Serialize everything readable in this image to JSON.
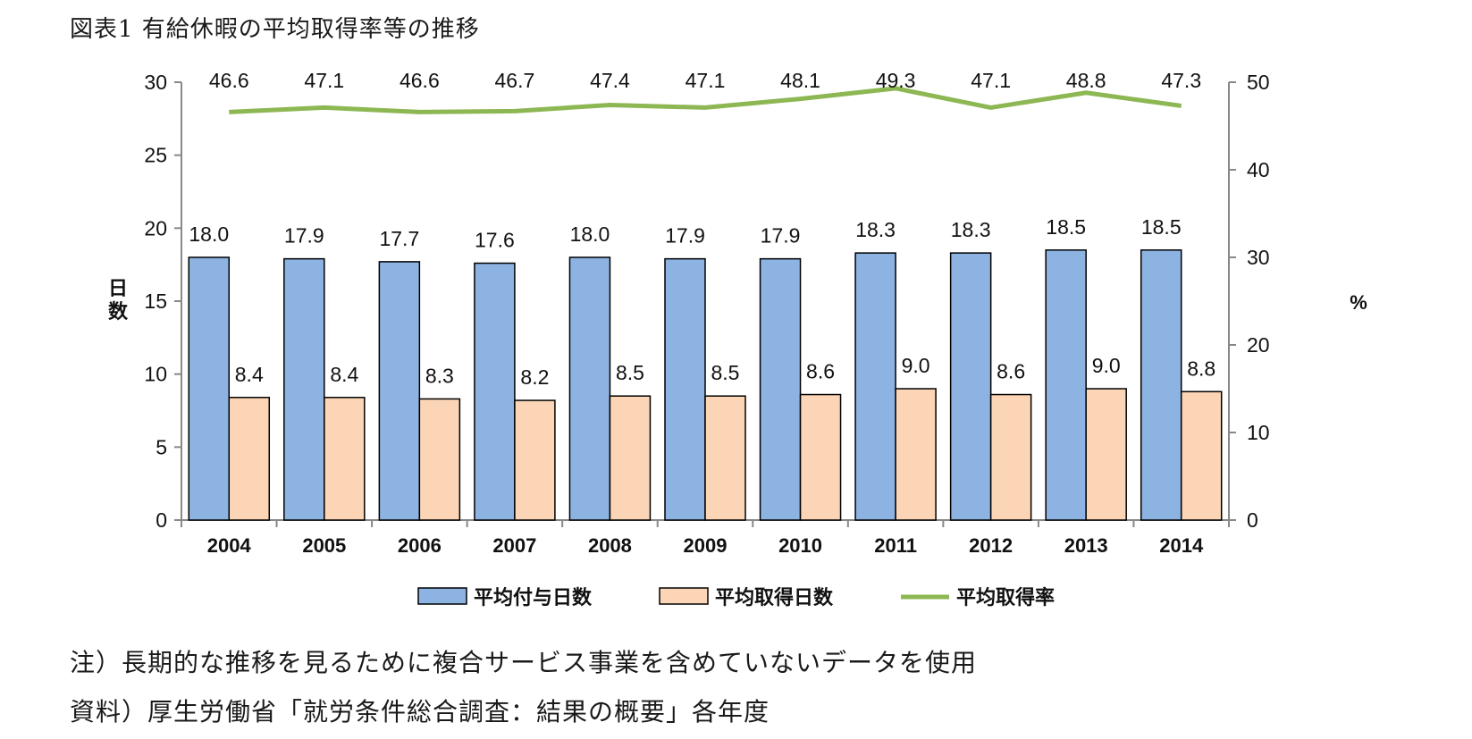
{
  "title": "図表1 有給休暇の平均取得率等の推移",
  "notes": {
    "note1": "注）長期的な推移を見るために複合サービス事業を含めていないデータを使用",
    "note2": "資料）厚生労働省「就労条件総合調査：結果の概要」各年度"
  },
  "chart_data": {
    "type": "bar",
    "categories": [
      "2004",
      "2005",
      "2006",
      "2007",
      "2008",
      "2009",
      "2010",
      "2011",
      "2012",
      "2013",
      "2014"
    ],
    "series": [
      {
        "name": "平均付与日数",
        "type": "bar",
        "axis": "left",
        "color": "#8db3e2",
        "values": [
          18.0,
          17.9,
          17.7,
          17.6,
          18.0,
          17.9,
          17.9,
          18.3,
          18.3,
          18.5,
          18.5
        ]
      },
      {
        "name": "平均取得日数",
        "type": "bar",
        "axis": "left",
        "color": "#fbd5b5",
        "values": [
          8.4,
          8.4,
          8.3,
          8.2,
          8.5,
          8.5,
          8.6,
          9.0,
          8.6,
          9.0,
          8.8
        ]
      },
      {
        "name": "平均取得率",
        "type": "line",
        "axis": "right",
        "color": "#8db753",
        "values": [
          46.6,
          47.1,
          46.6,
          46.7,
          47.4,
          47.1,
          48.1,
          49.3,
          47.1,
          48.8,
          47.3
        ]
      }
    ],
    "left_axis": {
      "label": "日数",
      "ylim": [
        0,
        30
      ],
      "ticks": [
        0,
        5,
        10,
        15,
        20,
        25,
        30
      ]
    },
    "right_axis": {
      "label": "%",
      "ylim": [
        0,
        50
      ],
      "ticks": [
        0,
        10,
        20,
        30,
        40,
        50
      ]
    },
    "legend_position": "bottom",
    "grid": false
  }
}
